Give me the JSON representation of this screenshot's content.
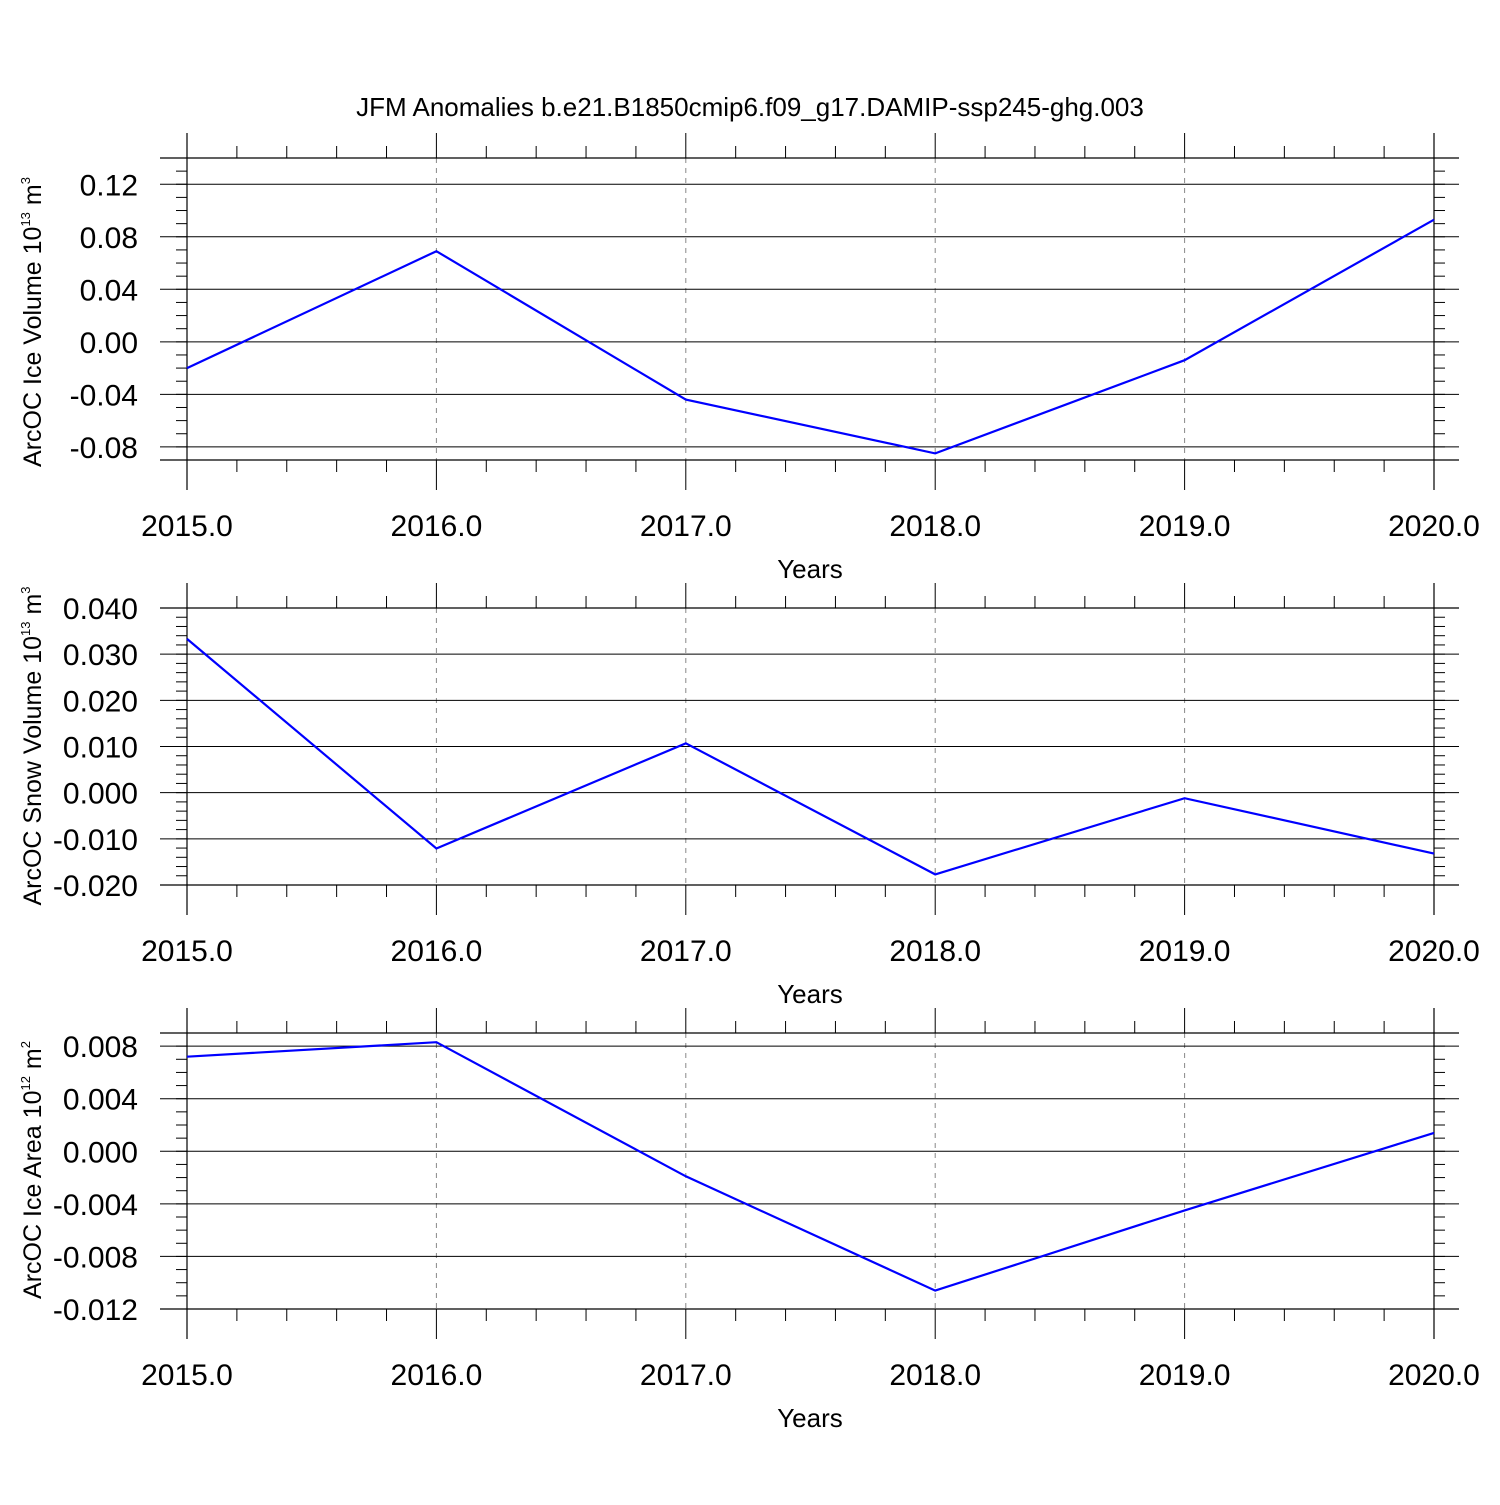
{
  "figure": {
    "title": "JFM Anomalies b.e21.B1850cmip6.f09_g17.DAMIP-ssp245-ghg.003",
    "line_color": "#0000ff"
  },
  "chart_data": [
    {
      "type": "line",
      "title": "",
      "xlabel": "Years",
      "ylabel": {
        "text": "ArcOC Ice Volume 10",
        "exp": "13",
        "unit": " m",
        "unit_exp": "3"
      },
      "x": [
        2015,
        2016,
        2017,
        2018,
        2019,
        2020
      ],
      "xticks": [
        "2015.0",
        "2016.0",
        "2017.0",
        "2018.0",
        "2019.0",
        "2020.0"
      ],
      "series": [
        {
          "name": "ArcOC Ice Volume",
          "values": [
            -0.02,
            0.069,
            -0.044,
            -0.085,
            -0.014,
            0.093
          ]
        }
      ],
      "ylim": [
        -0.09,
        0.14
      ],
      "yticks": [
        0.12,
        0.08,
        0.04,
        0.0,
        -0.04,
        -0.08
      ],
      "ytick_labels": [
        "0.12",
        "0.08",
        "0.04",
        "0.00",
        "-0.04",
        "-0.08"
      ],
      "yminor_step": 0.01,
      "grid": "vertical dashed"
    },
    {
      "type": "line",
      "title": "",
      "xlabel": "Years",
      "ylabel": {
        "text": "ArcOC Snow Volume 10",
        "exp": "13",
        "unit": " m",
        "unit_exp": "3"
      },
      "x": [
        2015,
        2016,
        2017,
        2018,
        2019,
        2020
      ],
      "xticks": [
        "2015.0",
        "2016.0",
        "2017.0",
        "2018.0",
        "2019.0",
        "2020.0"
      ],
      "series": [
        {
          "name": "ArcOC Snow Volume",
          "values": [
            0.0333,
            -0.0121,
            0.0107,
            -0.0177,
            -0.0012,
            -0.0132
          ]
        }
      ],
      "ylim": [
        -0.02,
        0.04
      ],
      "yticks": [
        0.04,
        0.03,
        0.02,
        0.01,
        0.0,
        -0.01,
        -0.02
      ],
      "ytick_labels": [
        "0.040",
        "0.030",
        "0.020",
        "0.010",
        "0.000",
        "-0.010",
        "-0.020"
      ],
      "yminor_step": 0.002,
      "grid": "vertical dashed"
    },
    {
      "type": "line",
      "title": "",
      "xlabel": "Years",
      "ylabel": {
        "text": "ArcOC Ice Area 10",
        "exp": "12",
        "unit": " m",
        "unit_exp": "2"
      },
      "x": [
        2015,
        2016,
        2017,
        2018,
        2019,
        2020
      ],
      "xticks": [
        "2015.0",
        "2016.0",
        "2017.0",
        "2018.0",
        "2019.0",
        "2020.0"
      ],
      "series": [
        {
          "name": "ArcOC Ice Area",
          "values": [
            0.0072,
            0.0083,
            -0.0019,
            -0.0106,
            -0.0045,
            0.0014
          ]
        }
      ],
      "ylim": [
        -0.012,
        0.009
      ],
      "yticks": [
        0.008,
        0.004,
        0.0,
        -0.004,
        -0.008,
        -0.012
      ],
      "ytick_labels": [
        "0.008",
        "0.004",
        "0.000",
        "-0.004",
        "-0.008",
        "-0.012"
      ],
      "yminor_step": 0.001,
      "grid": "vertical dashed"
    }
  ]
}
